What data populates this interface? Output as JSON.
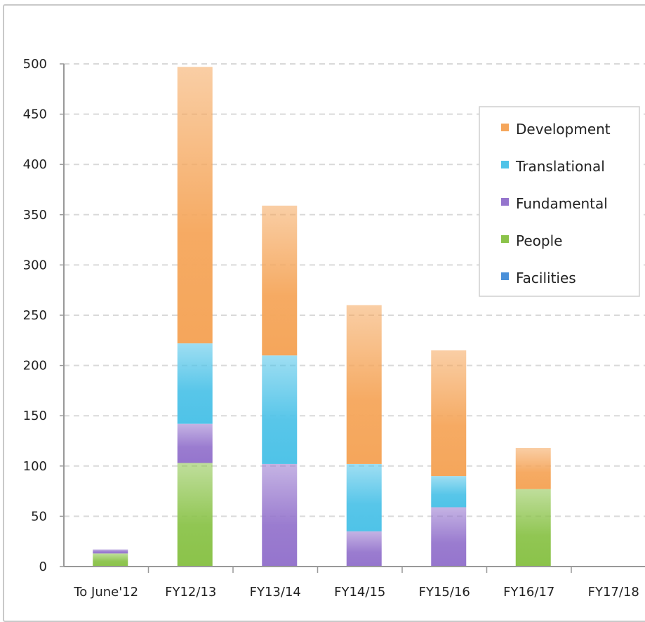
{
  "chart_data": {
    "type": "bar",
    "stacked": true,
    "categories": [
      "To June'12",
      "FY12/13",
      "FY13/14",
      "FY14/15",
      "FY15/16",
      "FY16/17",
      "FY17/18"
    ],
    "series": [
      {
        "name": "Facilities",
        "color": "#4a90d9",
        "values": [
          0,
          0,
          0,
          0,
          0,
          0,
          0
        ]
      },
      {
        "name": "People",
        "color": "#8bc34a",
        "values": [
          13,
          103,
          0,
          0,
          0,
          77,
          0
        ]
      },
      {
        "name": "Fundamental",
        "color": "#9575cd",
        "values": [
          4,
          39,
          102,
          35,
          59,
          0,
          0
        ]
      },
      {
        "name": "Translational",
        "color": "#4fc3e8",
        "values": [
          0,
          80,
          108,
          67,
          31,
          0,
          0
        ]
      },
      {
        "name": "Development",
        "color": "#f5a65b",
        "values": [
          0,
          275,
          149,
          158,
          125,
          41,
          0
        ]
      }
    ],
    "ylim": [
      0,
      500
    ],
    "yticks": [
      0,
      50,
      100,
      150,
      200,
      250,
      300,
      350,
      400,
      450,
      500
    ],
    "legend_order": [
      "Development",
      "Translational",
      "Fundamental",
      "People",
      "Facilities"
    ],
    "legend_position": "top-right",
    "grid": true
  }
}
